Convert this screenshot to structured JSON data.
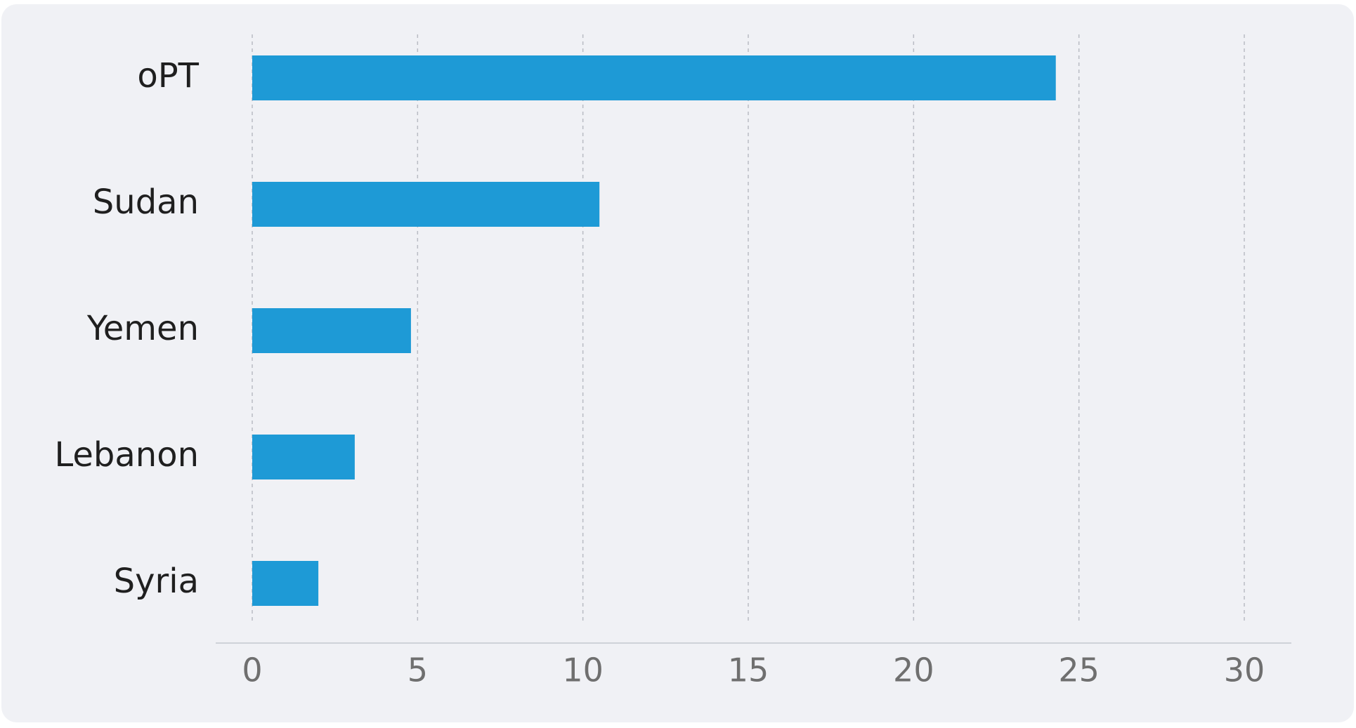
{
  "chart_data": {
    "type": "hbar",
    "categories": [
      "oPT",
      "Sudan",
      "Yemen",
      "Lebanon",
      "Syria"
    ],
    "values": [
      24.3,
      10.5,
      4.8,
      3.1,
      2.0
    ],
    "color": "#1e9ad6",
    "xlim": [
      0,
      30
    ],
    "xticks": [
      0,
      5,
      10,
      15,
      20,
      25,
      30
    ],
    "grid": true
  }
}
